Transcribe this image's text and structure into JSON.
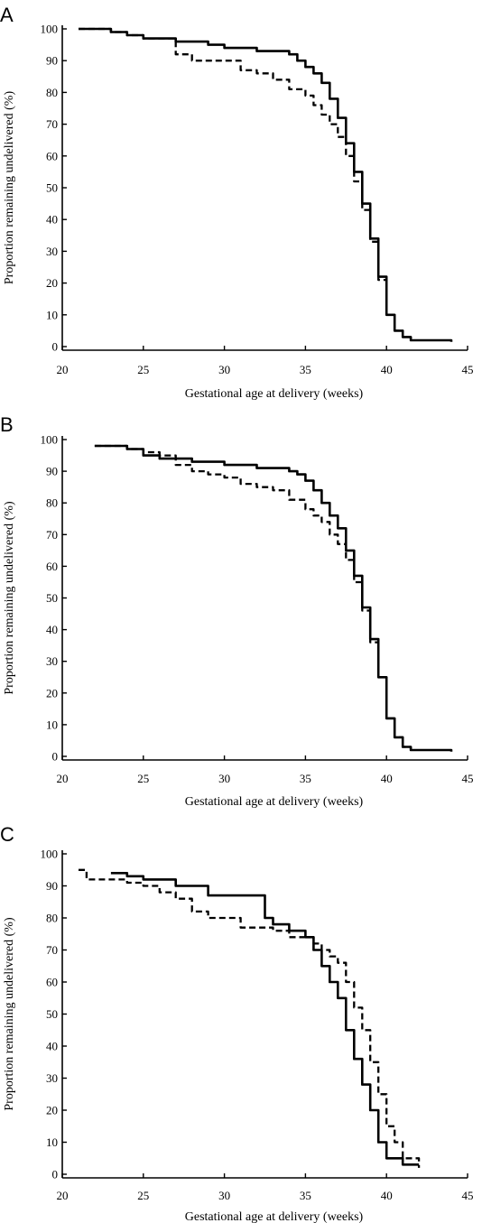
{
  "chart_data": [
    {
      "panel": "A",
      "type": "line",
      "xlabel": "Gestational age at delivery (weeks)",
      "ylabel": "Proportion remaining undelivered (%)",
      "xlim": [
        20,
        45
      ],
      "ylim": [
        0,
        100
      ],
      "xticks": [
        20,
        25,
        30,
        35,
        40,
        45
      ],
      "yticks": [
        0,
        10,
        20,
        30,
        40,
        50,
        60,
        70,
        80,
        90,
        100
      ],
      "grid": false,
      "series": [
        {
          "style": "solid",
          "x": [
            21,
            22,
            23,
            24,
            25,
            26,
            27,
            28,
            29,
            30,
            31,
            32,
            33,
            34,
            34.5,
            35,
            35.5,
            36,
            36.5,
            37,
            37.5,
            38,
            38.5,
            39,
            39.5,
            40,
            40.5,
            41,
            41.5,
            42,
            43,
            44
          ],
          "y": [
            100,
            100,
            99,
            98,
            97,
            97,
            96,
            96,
            95,
            94,
            94,
            93,
            93,
            92,
            90,
            88,
            86,
            83,
            78,
            72,
            64,
            55,
            45,
            34,
            22,
            10,
            5,
            3,
            2,
            2,
            2,
            1.5
          ]
        },
        {
          "style": "dashed",
          "x": [
            21,
            22,
            23,
            24,
            25,
            26,
            27,
            28,
            29,
            30,
            31,
            32,
            33,
            34,
            35,
            35.5,
            36,
            36.5,
            37,
            37.5,
            38,
            38.5,
            39,
            39.5,
            40,
            40.5,
            41,
            41.5
          ],
          "y": [
            100,
            100,
            99,
            98,
            97,
            97,
            92,
            90,
            90,
            90,
            87,
            86,
            84,
            81,
            79,
            76,
            73,
            70,
            66,
            60,
            52,
            43,
            33,
            21,
            10,
            5,
            3,
            2
          ]
        }
      ]
    },
    {
      "panel": "B",
      "type": "line",
      "xlabel": "Gestational age at delivery (weeks)",
      "ylabel": "Proportion remaining undelivered (%)",
      "xlim": [
        20,
        45
      ],
      "ylim": [
        0,
        100
      ],
      "xticks": [
        20,
        25,
        30,
        35,
        40,
        45
      ],
      "yticks": [
        0,
        10,
        20,
        30,
        40,
        50,
        60,
        70,
        80,
        90,
        100
      ],
      "grid": false,
      "series": [
        {
          "style": "solid",
          "x": [
            22,
            23,
            24,
            25,
            26,
            27,
            28,
            29,
            30,
            31,
            32,
            33,
            34,
            34.5,
            35,
            35.5,
            36,
            36.5,
            37,
            37.5,
            38,
            38.5,
            39,
            39.5,
            40,
            40.5,
            41,
            41.5,
            42,
            43,
            44
          ],
          "y": [
            98,
            98,
            97,
            95,
            94,
            94,
            93,
            93,
            92,
            92,
            91,
            91,
            90,
            89,
            87,
            84,
            80,
            76,
            72,
            65,
            57,
            47,
            37,
            25,
            12,
            6,
            3,
            2,
            2,
            2,
            1.5
          ]
        },
        {
          "style": "dashed",
          "x": [
            22,
            23,
            24,
            25,
            26,
            27,
            28,
            29,
            30,
            31,
            32,
            33,
            34,
            35,
            35.5,
            36,
            36.5,
            37,
            37.5,
            38,
            38.5,
            39,
            39.5,
            40,
            40.5,
            41,
            41.5
          ],
          "y": [
            98,
            98,
            97,
            96,
            95,
            92,
            90,
            89,
            88,
            86,
            85,
            84,
            81,
            78,
            76,
            74,
            70,
            67,
            62,
            55,
            46,
            36,
            25,
            12,
            6,
            3,
            2
          ]
        }
      ]
    },
    {
      "panel": "C",
      "type": "line",
      "xlabel": "Gestational age at delivery (weeks)",
      "ylabel": "Proportion remaining undelivered (%)",
      "xlim": [
        20,
        45
      ],
      "ylim": [
        0,
        100
      ],
      "xticks": [
        20,
        25,
        30,
        35,
        40,
        45
      ],
      "yticks": [
        0,
        10,
        20,
        30,
        40,
        50,
        60,
        70,
        80,
        90,
        100
      ],
      "grid": false,
      "series": [
        {
          "style": "solid",
          "x": [
            23,
            24,
            25,
            27,
            29,
            31,
            32.5,
            33,
            34,
            35,
            35.5,
            36,
            36.5,
            37,
            37.5,
            38,
            38.5,
            39,
            39.5,
            40,
            41,
            42
          ],
          "y": [
            94,
            93,
            92,
            90,
            87,
            87,
            80,
            78,
            76,
            74,
            70,
            65,
            60,
            55,
            45,
            36,
            28,
            20,
            10,
            5,
            3,
            3
          ]
        },
        {
          "style": "dashed",
          "x": [
            21,
            21.5,
            23,
            24,
            25,
            26,
            27,
            28,
            29,
            30,
            31,
            32,
            33,
            34,
            35,
            35.5,
            36,
            36.5,
            37,
            37.5,
            38,
            38.5,
            39,
            39.5,
            40,
            40.5,
            41,
            42
          ],
          "y": [
            95,
            92,
            92,
            91,
            90,
            88,
            86,
            82,
            80,
            80,
            77,
            77,
            76,
            74,
            74,
            72,
            70,
            68,
            66,
            60,
            52,
            45,
            35,
            25,
            15,
            10,
            5,
            2
          ]
        }
      ]
    }
  ]
}
